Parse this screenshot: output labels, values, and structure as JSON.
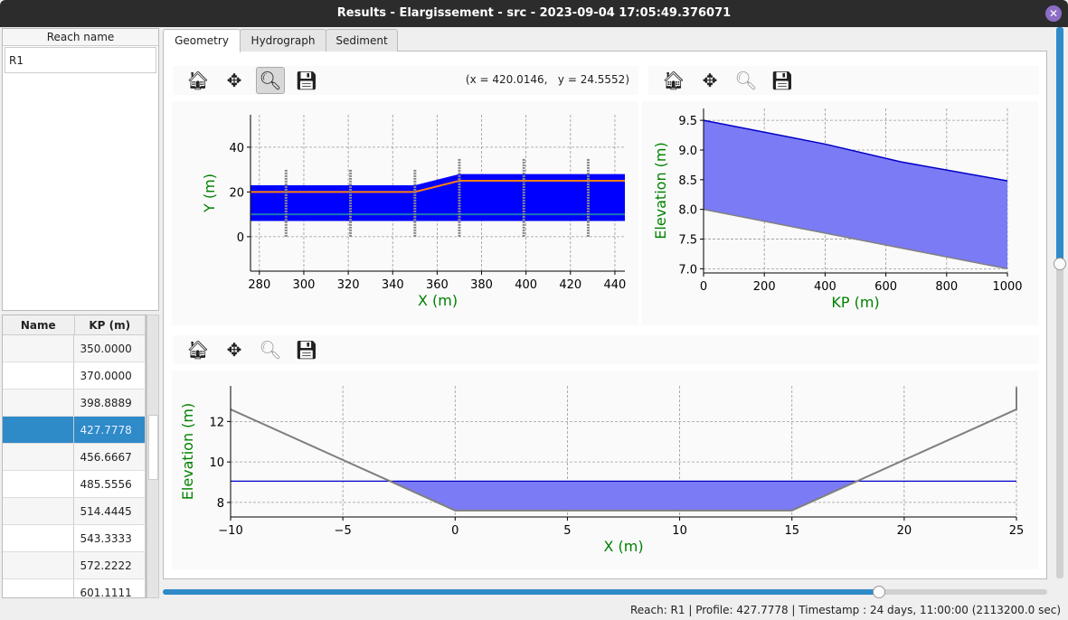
{
  "window": {
    "title": "Results - Elargissement - src - 2023-09-04 17:05:49.376071",
    "close_icon": "close-icon"
  },
  "reach_list": {
    "header": "Reach name",
    "items": [
      "R1"
    ]
  },
  "profiles_table": {
    "columns": [
      "Name",
      "KP (m)"
    ],
    "rows": [
      {
        "name": "",
        "kp": "350.0000"
      },
      {
        "name": "",
        "kp": "370.0000"
      },
      {
        "name": "",
        "kp": "398.8889"
      },
      {
        "name": "",
        "kp": "427.7778",
        "selected": true
      },
      {
        "name": "",
        "kp": "456.6667"
      },
      {
        "name": "",
        "kp": "485.5556"
      },
      {
        "name": "",
        "kp": "514.4445"
      },
      {
        "name": "",
        "kp": "543.3333"
      },
      {
        "name": "",
        "kp": "572.2222"
      },
      {
        "name": "",
        "kp": "601.1111"
      }
    ]
  },
  "tabs": [
    {
      "label": "Geometry",
      "active": true
    },
    {
      "label": "Hydrograph"
    },
    {
      "label": "Sediment"
    }
  ],
  "toolbar": {
    "icons": [
      "home-icon",
      "move-icon",
      "zoom-icon",
      "save-icon"
    ],
    "coords": "(x = 420.0146,   y = 24.5552)"
  },
  "colors": {
    "accent": "#2f8ac8",
    "water": "#0000ff",
    "water_fill": "#7b7bf5",
    "bed": "#808080",
    "axis_label": "#008000",
    "orange": "#ff7f0e",
    "teal": "#1f77b4"
  },
  "chart_data": [
    {
      "type": "line",
      "xlabel": "X (m)",
      "ylabel": "Y (m)",
      "xlim": [
        276,
        444.5
      ],
      "ylim": [
        -15.4,
        54.5
      ],
      "xticks": [
        280,
        300,
        320,
        340,
        360,
        380,
        400,
        420,
        440
      ],
      "yticks": [
        0,
        20,
        40
      ],
      "grid": true,
      "water_band": {
        "x": [
          276,
          350,
          370,
          444.5
        ],
        "lower": [
          7,
          7,
          7,
          7
        ],
        "upper": [
          23,
          23,
          28,
          28
        ]
      },
      "orange_line": {
        "x": [
          276,
          350,
          370,
          444.5
        ],
        "y": [
          20,
          20,
          25,
          25
        ]
      },
      "center_line": {
        "y": 10
      },
      "sections": [
        {
          "x": 292,
          "ymin": 0,
          "ymax": 30
        },
        {
          "x": 321,
          "ymin": 0,
          "ymax": 30
        },
        {
          "x": 350,
          "ymin": 0,
          "ymax": 30
        },
        {
          "x": 370,
          "ymin": 0,
          "ymax": 35
        },
        {
          "x": 399,
          "ymin": 0,
          "ymax": 35
        },
        {
          "x": 428,
          "ymin": 0,
          "ymax": 35
        }
      ]
    },
    {
      "type": "area",
      "xlabel": "KP (m)",
      "ylabel": "Elevation (m)",
      "xlim": [
        0,
        1000
      ],
      "ylim": [
        6.93,
        9.7
      ],
      "xticks": [
        0,
        200,
        400,
        600,
        800,
        1000
      ],
      "yticks": [
        7.0,
        7.5,
        8.0,
        8.5,
        9.0,
        9.5
      ],
      "ytick_labels": [
        "7.0",
        "7.5",
        "8.0",
        "8.5",
        "9.0",
        "9.5"
      ],
      "grid": true,
      "water": {
        "x": [
          0,
          400,
          650,
          1000
        ],
        "y": [
          9.5,
          9.1,
          8.8,
          8.48
        ]
      },
      "bed": {
        "x": [
          0,
          1000
        ],
        "y": [
          8.0,
          7.0
        ]
      }
    },
    {
      "type": "area",
      "xlabel": "X (m)",
      "ylabel": "Elevation (m)",
      "xlim": [
        -10,
        25
      ],
      "ylim": [
        7.28,
        13.76
      ],
      "xticks": [
        -10,
        -5,
        0,
        5,
        10,
        15,
        20,
        25
      ],
      "xtick_labels": [
        "−10",
        "−5",
        "0",
        "5",
        "10",
        "15",
        "20",
        "25"
      ],
      "yticks": [
        8,
        10,
        12
      ],
      "grid": true,
      "water_level": 9.05,
      "profile": {
        "x": [
          -10,
          0,
          15,
          25,
          25
        ],
        "y": [
          12.6,
          7.6,
          7.6,
          12.6,
          13.7
        ]
      }
    }
  ],
  "slider": {
    "value_fraction": 0.81
  },
  "vscroll": {
    "value_fraction": 0.43
  },
  "status": "Reach: R1 | Profile: 427.7778 | Timestamp : 24 days, 11:00:00 (2113200.0 sec)"
}
